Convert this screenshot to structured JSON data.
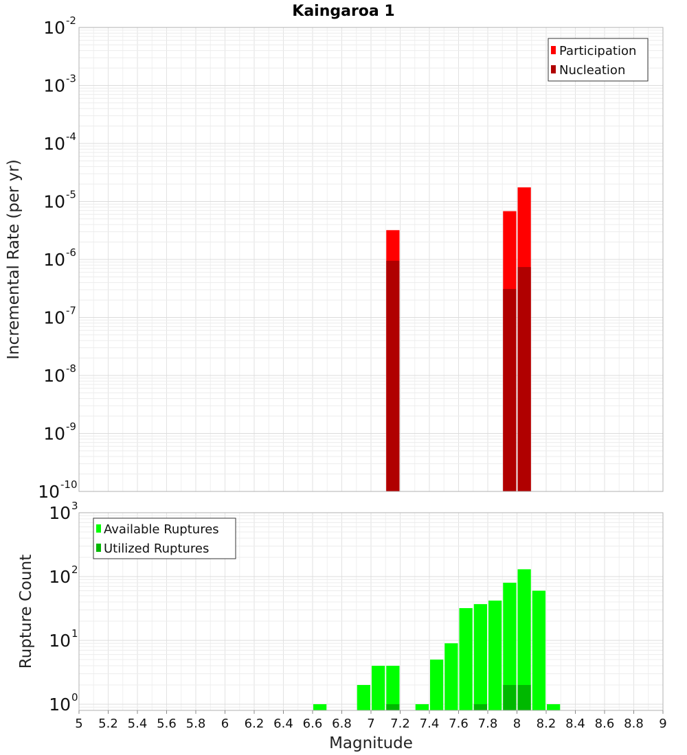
{
  "chart_data": [
    {
      "type": "bar",
      "title": "Kaingaroa 1",
      "xlabel": "Magnitude",
      "ylabel": "Incremental Rate (per yr)",
      "yscale": "log",
      "xlim": [
        5,
        9
      ],
      "ylim": [
        1e-10,
        0.01
      ],
      "bar_width": 0.1,
      "legend_position": "top-right",
      "series": [
        {
          "name": "Participation",
          "color": "#ff0000",
          "x": [
            7.15,
            7.95,
            8.05
          ],
          "values": [
            3.2e-06,
            6.8e-06,
            1.75e-05
          ]
        },
        {
          "name": "Nucleation",
          "color": "#b00000",
          "x": [
            7.15,
            7.95,
            8.05
          ],
          "values": [
            9.5e-07,
            3.1e-07,
            7.4e-07
          ]
        }
      ],
      "y_ticks": [
        {
          "base": "10",
          "exp": "-2"
        },
        {
          "base": "10",
          "exp": "-3"
        },
        {
          "base": "10",
          "exp": "-4"
        },
        {
          "base": "10",
          "exp": "-5"
        },
        {
          "base": "10",
          "exp": "-6"
        },
        {
          "base": "10",
          "exp": "-7"
        },
        {
          "base": "10",
          "exp": "-8"
        },
        {
          "base": "10",
          "exp": "-9"
        },
        {
          "base": "10",
          "exp": "-10"
        }
      ]
    },
    {
      "type": "bar",
      "title": "",
      "xlabel": "Magnitude",
      "ylabel": "Rupture Count",
      "yscale": "log",
      "xlim": [
        5,
        9
      ],
      "ylim": [
        0.8,
        1000
      ],
      "bar_width": 0.1,
      "legend_position": "top-left",
      "series": [
        {
          "name": "Available Ruptures",
          "color": "#00ff00",
          "x": [
            6.65,
            6.95,
            7.05,
            7.15,
            7.35,
            7.45,
            7.55,
            7.65,
            7.75,
            7.85,
            7.95,
            8.05,
            8.15,
            8.25
          ],
          "values": [
            1,
            2,
            4,
            4,
            1,
            5,
            9,
            32,
            37,
            42,
            80,
            130,
            60,
            1
          ]
        },
        {
          "name": "Utilized Ruptures",
          "color": "#00b800",
          "x": [
            7.15,
            7.75,
            7.95,
            8.05
          ],
          "values": [
            1,
            1,
            2,
            2
          ]
        }
      ],
      "y_ticks": [
        {
          "base": "10",
          "exp": "3"
        },
        {
          "base": "10",
          "exp": "2"
        },
        {
          "base": "10",
          "exp": "1"
        },
        {
          "base": "10",
          "exp": "0"
        }
      ]
    }
  ],
  "x_ticks": [
    "5",
    "5.2",
    "5.4",
    "5.6",
    "5.8",
    "6",
    "6.2",
    "6.4",
    "6.6",
    "6.8",
    "7",
    "7.2",
    "7.4",
    "7.6",
    "7.8",
    "8",
    "8.2",
    "8.4",
    "8.6",
    "8.8",
    "9"
  ]
}
